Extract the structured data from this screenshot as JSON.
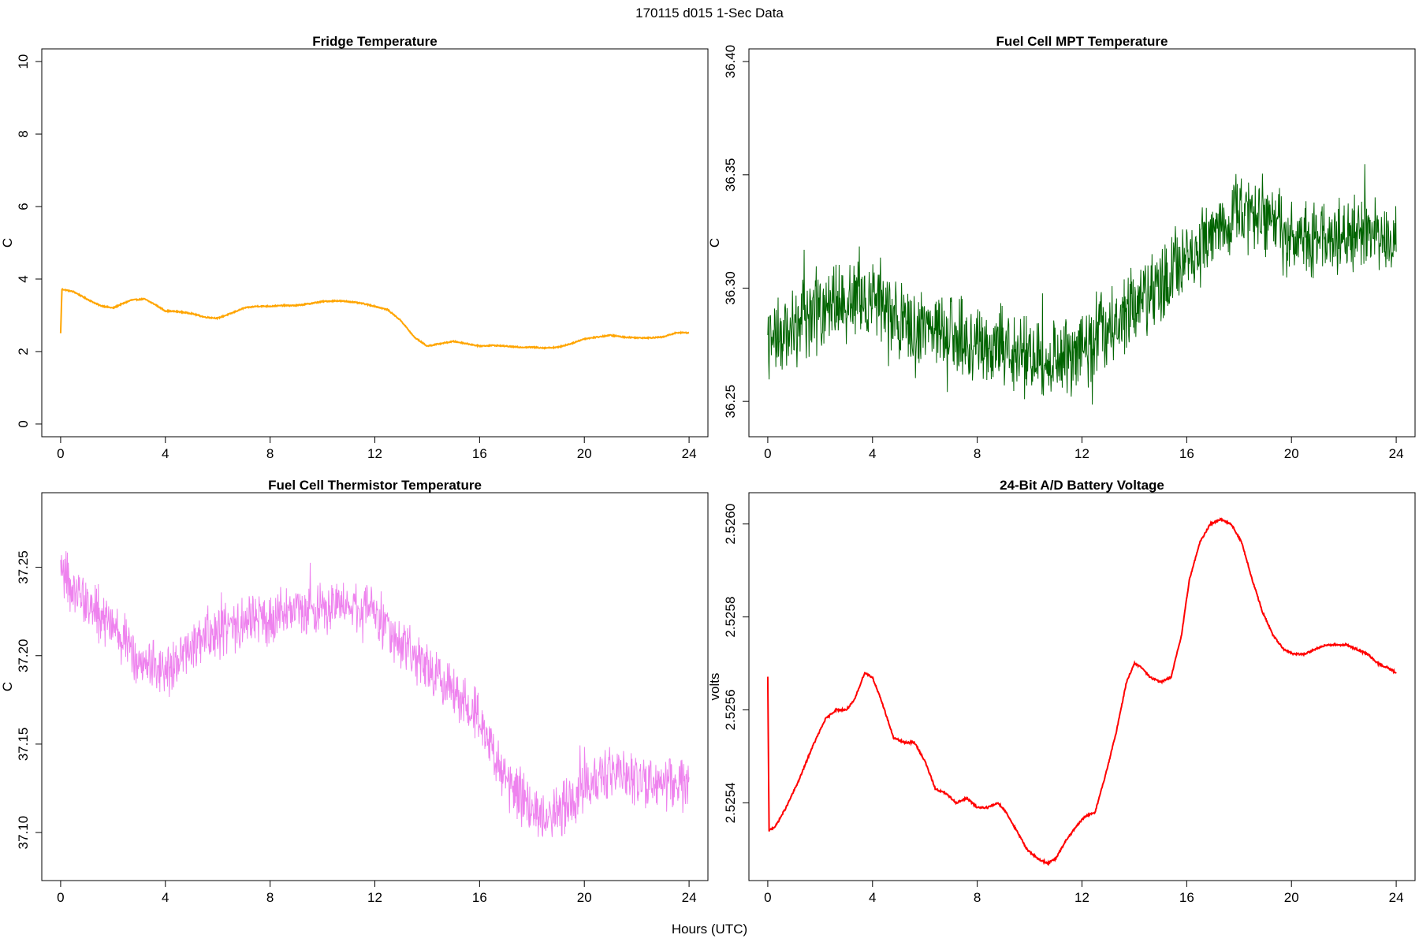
{
  "main_title": "170115   d015   1-Sec Data",
  "xlabel": "Hours (UTC)",
  "chart_data": [
    {
      "id": "fridge",
      "type": "line",
      "title": "Fridge Temperature",
      "ylabel": "C",
      "color": "#FFA500",
      "noise": 0.015,
      "xlim": [
        0,
        24
      ],
      "ylim": [
        0,
        10
      ],
      "xticks": [
        0,
        4,
        8,
        12,
        16,
        20,
        24
      ],
      "yticks": [
        0,
        2,
        4,
        6,
        8,
        10
      ],
      "ytick_labels": [
        "0",
        "2",
        "4",
        "6",
        "8",
        "10"
      ],
      "x": [
        0,
        0.05,
        0.5,
        1,
        1.5,
        2,
        2.3,
        2.7,
        3.2,
        3.6,
        4,
        4.5,
        5,
        5.5,
        6,
        6.5,
        7,
        7.5,
        8,
        8.5,
        9,
        9.5,
        10,
        10.5,
        11,
        11.5,
        12,
        12.5,
        13,
        13.5,
        14,
        14.5,
        15,
        15.5,
        16,
        16.5,
        17,
        17.5,
        18,
        18.5,
        19,
        19.5,
        20,
        20.5,
        21,
        21.5,
        22,
        22.5,
        23,
        23.5,
        24
      ],
      "y": [
        2.5,
        3.72,
        3.65,
        3.45,
        3.27,
        3.2,
        3.3,
        3.42,
        3.45,
        3.3,
        3.12,
        3.1,
        3.05,
        2.95,
        2.92,
        3.05,
        3.2,
        3.25,
        3.25,
        3.27,
        3.27,
        3.32,
        3.38,
        3.4,
        3.38,
        3.33,
        3.25,
        3.15,
        2.85,
        2.4,
        2.15,
        2.22,
        2.28,
        2.22,
        2.15,
        2.17,
        2.15,
        2.12,
        2.12,
        2.1,
        2.12,
        2.22,
        2.35,
        2.4,
        2.45,
        2.4,
        2.38,
        2.38,
        2.4,
        2.52,
        2.52
      ]
    },
    {
      "id": "fuel_mpt",
      "type": "line",
      "title": "Fuel Cell MPT Temperature",
      "ylabel": "C",
      "color": "#006400",
      "noise": 0.014,
      "xlim": [
        0,
        24
      ],
      "ylim": [
        36.24,
        36.4
      ],
      "xticks": [
        0,
        4,
        8,
        12,
        16,
        20,
        24
      ],
      "yticks": [
        36.25,
        36.3,
        36.35,
        36.4
      ],
      "ytick_labels": [
        "36.25",
        "36.30",
        "36.35",
        "36.40"
      ],
      "x": [
        0,
        1,
        2,
        3,
        4,
        5,
        6,
        7,
        8,
        9,
        10,
        11,
        12,
        13,
        14,
        15,
        16,
        17,
        18,
        19,
        20,
        21,
        22,
        23,
        24
      ],
      "y": [
        36.275,
        36.283,
        36.29,
        36.295,
        36.298,
        36.285,
        36.283,
        36.279,
        36.277,
        36.274,
        36.27,
        36.268,
        36.272,
        36.283,
        36.292,
        36.302,
        36.313,
        36.326,
        36.333,
        36.331,
        36.323,
        36.322,
        36.323,
        36.324,
        36.325
      ]
    },
    {
      "id": "fuel_therm",
      "type": "line",
      "title": "Fuel Cell Thermistor Temperature",
      "ylabel": "C",
      "color": "#EE82EE",
      "noise": 0.012,
      "xlim": [
        0,
        24
      ],
      "ylim": [
        37.08,
        37.285
      ],
      "xticks": [
        0,
        4,
        8,
        12,
        16,
        20,
        24
      ],
      "yticks": [
        37.1,
        37.15,
        37.2,
        37.25
      ],
      "ytick_labels": [
        "37.10",
        "37.15",
        "37.20",
        "37.25"
      ],
      "x": [
        0,
        1,
        2,
        3,
        4,
        5,
        6,
        7,
        8,
        9,
        10,
        11,
        12,
        13,
        14,
        15,
        16,
        17,
        18,
        19,
        20,
        21,
        22,
        23,
        24
      ],
      "y": [
        37.245,
        37.23,
        37.215,
        37.2,
        37.19,
        37.205,
        37.215,
        37.218,
        37.22,
        37.225,
        37.228,
        37.232,
        37.225,
        37.205,
        37.19,
        37.18,
        37.165,
        37.13,
        37.112,
        37.11,
        37.128,
        37.135,
        37.13,
        37.128,
        37.125
      ]
    },
    {
      "id": "battery",
      "type": "line",
      "title": "24-Bit A/D Battery Voltage",
      "ylabel": "volts",
      "color": "#FF0000",
      "noise": 2e-06,
      "xlim": [
        0,
        24
      ],
      "ylim": [
        2.52526,
        2.52604
      ],
      "xticks": [
        0,
        4,
        8,
        12,
        16,
        20,
        24
      ],
      "yticks": [
        2.5254,
        2.5256,
        2.5258,
        2.526
      ],
      "ytick_labels": [
        "2.5254",
        "2.5256",
        "2.5258",
        "2.5260"
      ],
      "x": [
        0,
        0.05,
        0.3,
        0.7,
        1.2,
        1.7,
        2.2,
        2.6,
        3,
        3.3,
        3.7,
        4,
        4.4,
        4.8,
        5.2,
        5.6,
        6,
        6.4,
        6.8,
        7.2,
        7.6,
        8,
        8.4,
        8.8,
        9.1,
        9.5,
        9.9,
        10.3,
        10.7,
        11,
        11.4,
        11.8,
        12.1,
        12.5,
        12.9,
        13.3,
        13.7,
        14,
        14.3,
        14.6,
        15,
        15.4,
        15.8,
        16.1,
        16.5,
        16.9,
        17.3,
        17.7,
        18.1,
        18.5,
        18.9,
        19.3,
        19.7,
        20.1,
        20.5,
        20.9,
        21.3,
        21.7,
        22.1,
        22.5,
        22.9,
        23.3,
        23.7,
        24
      ],
      "y": [
        2.52567,
        2.52534,
        2.52535,
        2.52539,
        2.52545,
        2.52552,
        2.52558,
        2.5256,
        2.5256,
        2.52562,
        2.52568,
        2.52567,
        2.52561,
        2.52554,
        2.52553,
        2.52553,
        2.52549,
        2.52543,
        2.52542,
        2.5254,
        2.52541,
        2.52539,
        2.52539,
        2.5254,
        2.52538,
        2.52534,
        2.5253,
        2.52528,
        2.52527,
        2.52528,
        2.52532,
        2.52535,
        2.52537,
        2.52538,
        2.52546,
        2.52555,
        2.52566,
        2.5257,
        2.52569,
        2.52567,
        2.52566,
        2.52567,
        2.52576,
        2.52588,
        2.52596,
        2.526,
        2.52601,
        2.526,
        2.52596,
        2.52588,
        2.52581,
        2.52576,
        2.52573,
        2.52572,
        2.52572,
        2.52573,
        2.52574,
        2.52574,
        2.52574,
        2.52573,
        2.52572,
        2.5257,
        2.52569,
        2.52568
      ]
    }
  ]
}
